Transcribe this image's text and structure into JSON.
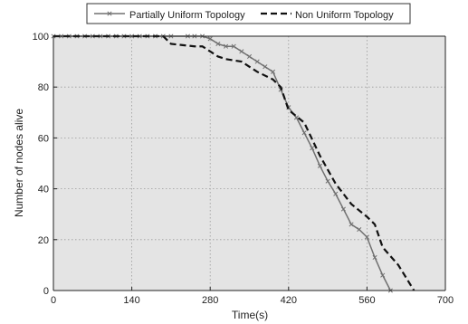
{
  "chart_data": {
    "type": "line",
    "title": "",
    "xlabel": "Time(s)",
    "ylabel": "Number of nodes alive",
    "xlim": [
      0,
      700
    ],
    "ylim": [
      0,
      100
    ],
    "xticks": [
      0,
      140,
      280,
      420,
      560,
      700
    ],
    "yticks": [
      0,
      20,
      40,
      60,
      80,
      100
    ],
    "grid": true,
    "legend_position": "top",
    "plot_background": "#e4e4e4",
    "series": [
      {
        "name": "Partially Uniform Topology",
        "style": "solid-with-x-markers",
        "color": "#707070",
        "x": [
          0,
          14,
          28,
          42,
          56,
          70,
          84,
          98,
          112,
          126,
          140,
          154,
          168,
          182,
          196,
          210,
          240,
          252,
          266,
          280,
          294,
          308,
          322,
          336,
          350,
          364,
          378,
          392,
          406,
          420,
          434,
          448,
          462,
          476,
          490,
          504,
          518,
          532,
          546,
          560,
          574,
          588,
          602
        ],
        "y": [
          100,
          100,
          100,
          100,
          100,
          100,
          100,
          100,
          100,
          100,
          100,
          100,
          100,
          100,
          100,
          100,
          100,
          100,
          100,
          99,
          97,
          96,
          96,
          94,
          92,
          90,
          88,
          86,
          79,
          72,
          68,
          62,
          56,
          49,
          43,
          38,
          32,
          26,
          24,
          21,
          13,
          6,
          0
        ]
      },
      {
        "name": "Non Uniform Topology",
        "style": "dashed",
        "color": "#111111",
        "x": [
          0,
          196,
          210,
          252,
          266,
          280,
          294,
          308,
          336,
          364,
          392,
          406,
          420,
          448,
          476,
          504,
          532,
          560,
          574,
          588,
          616,
          644
        ],
        "y": [
          100,
          100,
          97,
          96,
          96,
          94,
          92,
          91,
          90,
          86,
          83,
          80,
          71,
          66,
          53,
          42,
          34,
          29,
          26,
          17,
          10,
          0
        ]
      }
    ]
  }
}
